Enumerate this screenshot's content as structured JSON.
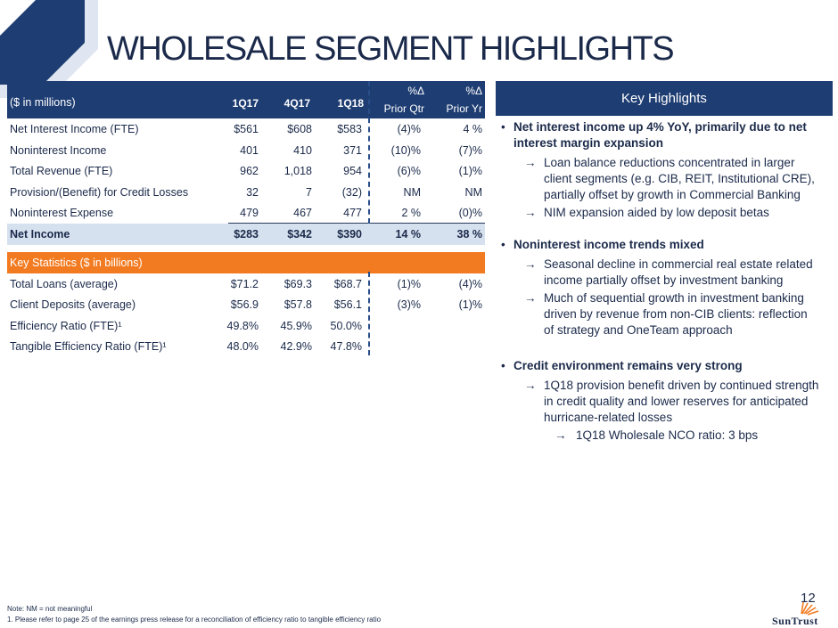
{
  "title": "WHOLESALE SEGMENT HIGHLIGHTS",
  "table": {
    "units_label": "($ in millions)",
    "columns": [
      "1Q17",
      "4Q17",
      "1Q18"
    ],
    "pct_prior_qtr": {
      "symbol": "%Δ",
      "label": "Prior Qtr"
    },
    "pct_prior_yr": {
      "symbol": "%Δ",
      "label": "Prior Yr"
    },
    "rows": [
      {
        "label": "Net Interest Income (FTE)",
        "values": [
          "$561",
          "$608",
          "$583",
          "(4)%",
          "4 %"
        ]
      },
      {
        "label": "Noninterest Income",
        "values": [
          "401",
          "410",
          "371",
          "(10)%",
          "(7)%"
        ]
      },
      {
        "label": "Total Revenue (FTE)",
        "values": [
          "962",
          "1,018",
          "954",
          "(6)%",
          "(1)%"
        ]
      },
      {
        "label": "Provision/(Benefit) for Credit Losses",
        "values": [
          "32",
          "7",
          "(32)",
          "NM",
          "NM"
        ]
      },
      {
        "label": "Noninterest Expense",
        "values": [
          "479",
          "467",
          "477",
          "2 %",
          "(0)%"
        ]
      }
    ],
    "net_income": {
      "label": "Net Income",
      "values": [
        "$283",
        "$342",
        "$390",
        "14 %",
        "38 %"
      ]
    },
    "key_stats_label": "Key Statistics ($ in billions)",
    "stats": [
      {
        "label": "Total Loans (average)",
        "values": [
          "$71.2",
          "$69.3",
          "$68.7",
          "(1)%",
          "(4)%"
        ]
      },
      {
        "label": "Client Deposits (average)",
        "values": [
          "$56.9",
          "$57.8",
          "$56.1",
          "(3)%",
          "(1)%"
        ]
      },
      {
        "label": "Efficiency Ratio (FTE)¹",
        "values": [
          "49.8%",
          "45.9%",
          "50.0%",
          "",
          ""
        ]
      },
      {
        "label": "Tangible Efficiency Ratio (FTE)¹",
        "values": [
          "48.0%",
          "42.9%",
          "47.8%",
          "",
          ""
        ]
      }
    ]
  },
  "highlights": {
    "header": "Key Highlights",
    "arrow": "→",
    "bullets": [
      {
        "text": "Net interest income up 4% YoY, primarily due to net interest margin expansion",
        "subs": [
          "Loan balance reductions concentrated in larger client segments (e.g. CIB, REIT, Institutional CRE), partially offset by growth in Commercial Banking",
          "NIM expansion aided by low deposit betas"
        ]
      },
      {
        "text": "Noninterest income trends mixed",
        "subs": [
          "Seasonal decline in commercial real estate related income partially offset by investment banking",
          "Much of sequential growth in investment banking driven by revenue from non-CIB clients: reflection of strategy and OneTeam approach"
        ]
      },
      {
        "text": "Credit environment remains very strong",
        "subs": [
          "1Q18 provision benefit driven by continued strength in credit quality and lower reserves for anticipated hurricane-related losses"
        ],
        "subsub": "1Q18 Wholesale NCO ratio: 3 bps"
      }
    ]
  },
  "footnotes": {
    "note": "Note: NM = not meaningful",
    "one": "1.  Please refer to page 25 of the earnings press release for a reconciliation of efficiency ratio to tangible efficiency ratio"
  },
  "page_number": "12",
  "logo_text": "SunTrust",
  "colors": {
    "navy": "#1e3d72",
    "orange": "#f27b21",
    "net_income_bg": "#d6e1ef",
    "text": "#1b2a4a"
  }
}
